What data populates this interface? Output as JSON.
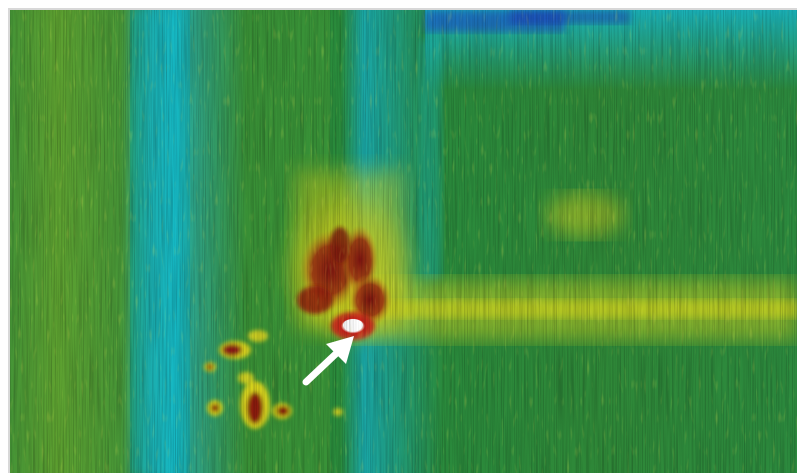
{
  "image": {
    "kind": "thermal-infrared-image",
    "palette": {
      "cold": "#1a2fc0",
      "cyan": "#19b9c4",
      "teal": "#178f6a",
      "green": "#2f8a2a",
      "yellow": "#d8d81c",
      "red": "#8e1a10",
      "hot": "#ffffff"
    }
  },
  "annotation": {
    "icon": "arrow-icon",
    "color": "#ffffff",
    "points_to": "hot-spot"
  }
}
